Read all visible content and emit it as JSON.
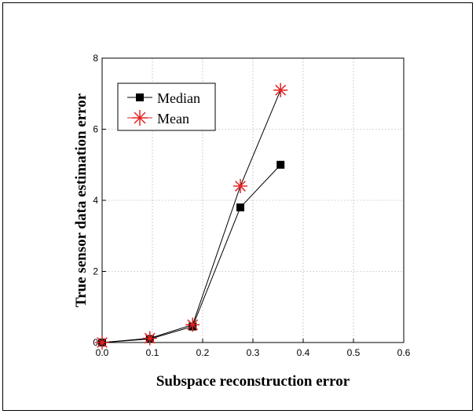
{
  "chart_data": {
    "type": "line",
    "title": "",
    "xlabel": "Subspace reconstruction error",
    "ylabel": "True sensor data estimation error",
    "xlim": [
      0.0,
      0.6
    ],
    "ylim": [
      0,
      8
    ],
    "xticks": [
      "0.0",
      "0.1",
      "0.2",
      "0.3",
      "0.4",
      "0.5",
      "0.6"
    ],
    "yticks": [
      "0",
      "2",
      "4",
      "6",
      "8"
    ],
    "grid": true,
    "legend_placement": "top-left",
    "series": [
      {
        "name": "Median",
        "marker": "square",
        "color": "#000000",
        "line_color": "#000000",
        "x": [
          0.0,
          0.095,
          0.18,
          0.275,
          0.355
        ],
        "y": [
          0.0,
          0.1,
          0.45,
          3.8,
          5.0
        ]
      },
      {
        "name": "Mean",
        "marker": "asterisk",
        "color": "#e32222",
        "line_color": "#000000",
        "x": [
          0.0,
          0.095,
          0.18,
          0.275,
          0.355
        ],
        "y": [
          0.0,
          0.12,
          0.5,
          4.4,
          7.1
        ]
      }
    ]
  }
}
